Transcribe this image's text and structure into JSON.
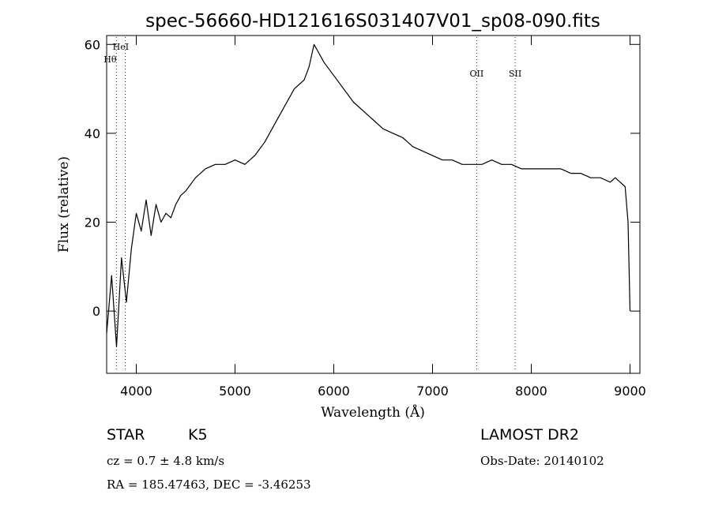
{
  "chart_data": {
    "type": "line",
    "title": "spec-56660-HD121616S031407V01_sp08-090.fits",
    "xlabel": "Wavelength (Å)",
    "ylabel": "Flux (relative)",
    "xlim": [
      3700,
      9100
    ],
    "ylim": [
      -14,
      62
    ],
    "x_ticks": [
      4000,
      5000,
      6000,
      7000,
      8000,
      9000
    ],
    "y_ticks": [
      0,
      20,
      40,
      60
    ],
    "series": [
      {
        "x": [
          3700,
          3750,
          3800,
          3850,
          3900,
          3950,
          4000,
          4050,
          4100,
          4150,
          4200,
          4250,
          4300,
          4350,
          4400,
          4450,
          4500,
          4600,
          4700,
          4800,
          4900,
          5000,
          5100,
          5200,
          5300,
          5400,
          5500,
          5600,
          5700,
          5750,
          5800,
          5850,
          5900,
          6000,
          6100,
          6200,
          6300,
          6400,
          6500,
          6600,
          6700,
          6800,
          6900,
          7000,
          7100,
          7200,
          7300,
          7400,
          7500,
          7600,
          7700,
          7800,
          7900,
          8000,
          8100,
          8200,
          8300,
          8400,
          8500,
          8600,
          8700,
          8800,
          8850,
          8900,
          8950,
          8980,
          9000
        ],
        "y": [
          -5,
          8,
          -8,
          12,
          2,
          14,
          22,
          18,
          25,
          17,
          24,
          20,
          22,
          21,
          24,
          26,
          27,
          30,
          32,
          33,
          33,
          34,
          33,
          35,
          38,
          42,
          46,
          50,
          52,
          55,
          60,
          58,
          56,
          53,
          50,
          47,
          45,
          43,
          41,
          40,
          39,
          37,
          36,
          35,
          34,
          34,
          33,
          33,
          33,
          34,
          33,
          33,
          32,
          32,
          32,
          32,
          32,
          31,
          31,
          30,
          30,
          29,
          30,
          29,
          28,
          20,
          0
        ]
      }
    ],
    "annotations": [
      {
        "label": "HeI",
        "x": 3889
      },
      {
        "label": "Hθ",
        "x": 3798
      },
      {
        "label": "OII",
        "x": 7447
      },
      {
        "label": "SII",
        "x": 7837
      }
    ],
    "grid": false,
    "legend": "none"
  },
  "info": {
    "class_label": "STAR",
    "subclass_label": "K5",
    "survey_label": "LAMOST DR2",
    "cz_text": "cz = 0.7 ± 4.8 km/s",
    "obs_date_text": "Obs-Date: 20140102",
    "coords_text": "RA = 185.47463, DEC =  -3.46253"
  }
}
